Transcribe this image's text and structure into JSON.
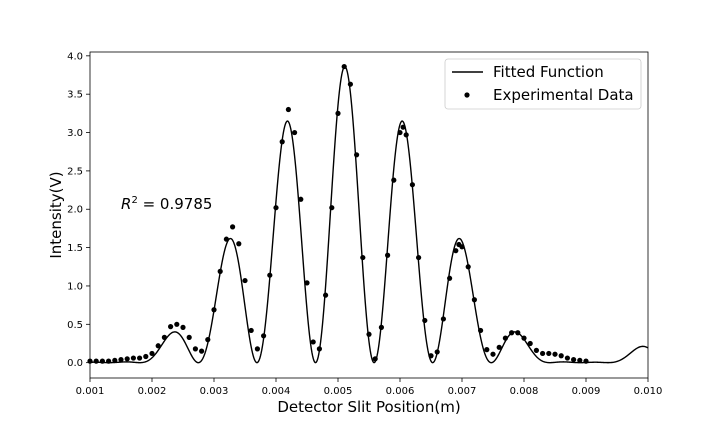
{
  "chart_data": {
    "type": "scatter",
    "xlabel": "Detector Slit Position(m)",
    "ylabel": "Intensity(V)",
    "xlim": [
      0.001,
      0.01
    ],
    "ylim": [
      -0.2,
      4.05
    ],
    "x_ticks": [
      0.001,
      0.002,
      0.003,
      0.004,
      0.005,
      0.006,
      0.007,
      0.008,
      0.009,
      0.01
    ],
    "x_tick_labels": [
      "0.001",
      "0.002",
      "0.003",
      "0.004",
      "0.005",
      "0.006",
      "0.007",
      "0.008",
      "0.009",
      "0.010"
    ],
    "y_ticks": [
      0.0,
      0.5,
      1.0,
      1.5,
      2.0,
      2.5,
      3.0,
      3.5,
      4.0
    ],
    "y_tick_labels": [
      "0.0",
      "0.5",
      "1.0",
      "1.5",
      "2.0",
      "2.5",
      "3.0",
      "3.5",
      "4.0"
    ],
    "grid": false,
    "legend_position": "top-right",
    "annotation": {
      "base": "R",
      "exponent": "2",
      "text": " = 0.9785"
    },
    "colors": {
      "fit_line": "#000000",
      "points": "#000000"
    },
    "series": [
      {
        "name": "Fitted Function",
        "kind": "line",
        "model": {
          "center": 0.00511,
          "intensity": 3.86,
          "fringe_period": 0.000945,
          "envelope_halfwidth": 0.0038,
          "tail_bump": {
            "center": 0.00995,
            "height": 0.09,
            "width": 0.00025
          }
        }
      },
      {
        "name": "Experimental Data",
        "kind": "scatter",
        "points": [
          [
            0.001,
            0.02
          ],
          [
            0.0011,
            0.02
          ],
          [
            0.0012,
            0.02
          ],
          [
            0.0013,
            0.02
          ],
          [
            0.0014,
            0.03
          ],
          [
            0.0015,
            0.04
          ],
          [
            0.0016,
            0.05
          ],
          [
            0.0017,
            0.06
          ],
          [
            0.0018,
            0.06
          ],
          [
            0.0019,
            0.08
          ],
          [
            0.002,
            0.12
          ],
          [
            0.0021,
            0.22
          ],
          [
            0.0022,
            0.33
          ],
          [
            0.0023,
            0.47
          ],
          [
            0.0024,
            0.5
          ],
          [
            0.0025,
            0.46
          ],
          [
            0.0026,
            0.33
          ],
          [
            0.0027,
            0.18
          ],
          [
            0.0028,
            0.15
          ],
          [
            0.0029,
            0.3
          ],
          [
            0.003,
            0.69
          ],
          [
            0.0031,
            1.19
          ],
          [
            0.0032,
            1.61
          ],
          [
            0.0033,
            1.77
          ],
          [
            0.0034,
            1.55
          ],
          [
            0.0035,
            1.07
          ],
          [
            0.0036,
            0.42
          ],
          [
            0.0037,
            0.18
          ],
          [
            0.0038,
            0.35
          ],
          [
            0.0039,
            1.14
          ],
          [
            0.004,
            2.02
          ],
          [
            0.0041,
            2.88
          ],
          [
            0.0042,
            3.3
          ],
          [
            0.0043,
            3.0
          ],
          [
            0.0044,
            2.13
          ],
          [
            0.0045,
            1.04
          ],
          [
            0.0046,
            0.27
          ],
          [
            0.0047,
            0.18
          ],
          [
            0.0048,
            0.88
          ],
          [
            0.0049,
            2.02
          ],
          [
            0.005,
            3.25
          ],
          [
            0.0051,
            3.86
          ],
          [
            0.0052,
            3.63
          ],
          [
            0.0053,
            2.71
          ],
          [
            0.0054,
            1.37
          ],
          [
            0.0055,
            0.37
          ],
          [
            0.0056,
            0.05
          ],
          [
            0.0057,
            0.46
          ],
          [
            0.0058,
            1.4
          ],
          [
            0.0059,
            2.38
          ],
          [
            0.006,
            3.0
          ],
          [
            0.00605,
            3.07
          ],
          [
            0.0061,
            2.97
          ],
          [
            0.0062,
            2.32
          ],
          [
            0.0063,
            1.37
          ],
          [
            0.0064,
            0.55
          ],
          [
            0.0065,
            0.09
          ],
          [
            0.0066,
            0.14
          ],
          [
            0.0067,
            0.57
          ],
          [
            0.0068,
            1.1
          ],
          [
            0.0069,
            1.46
          ],
          [
            0.00695,
            1.54
          ],
          [
            0.007,
            1.51
          ],
          [
            0.0071,
            1.25
          ],
          [
            0.0072,
            0.82
          ],
          [
            0.0073,
            0.42
          ],
          [
            0.0074,
            0.17
          ],
          [
            0.0075,
            0.11
          ],
          [
            0.0076,
            0.2
          ],
          [
            0.0077,
            0.32
          ],
          [
            0.0078,
            0.39
          ],
          [
            0.0079,
            0.39
          ],
          [
            0.008,
            0.32
          ],
          [
            0.0081,
            0.25
          ],
          [
            0.0082,
            0.16
          ],
          [
            0.0083,
            0.12
          ],
          [
            0.0084,
            0.12
          ],
          [
            0.0085,
            0.11
          ],
          [
            0.0086,
            0.09
          ],
          [
            0.0087,
            0.06
          ],
          [
            0.0088,
            0.04
          ],
          [
            0.0089,
            0.03
          ],
          [
            0.009,
            0.02
          ]
        ]
      }
    ]
  }
}
